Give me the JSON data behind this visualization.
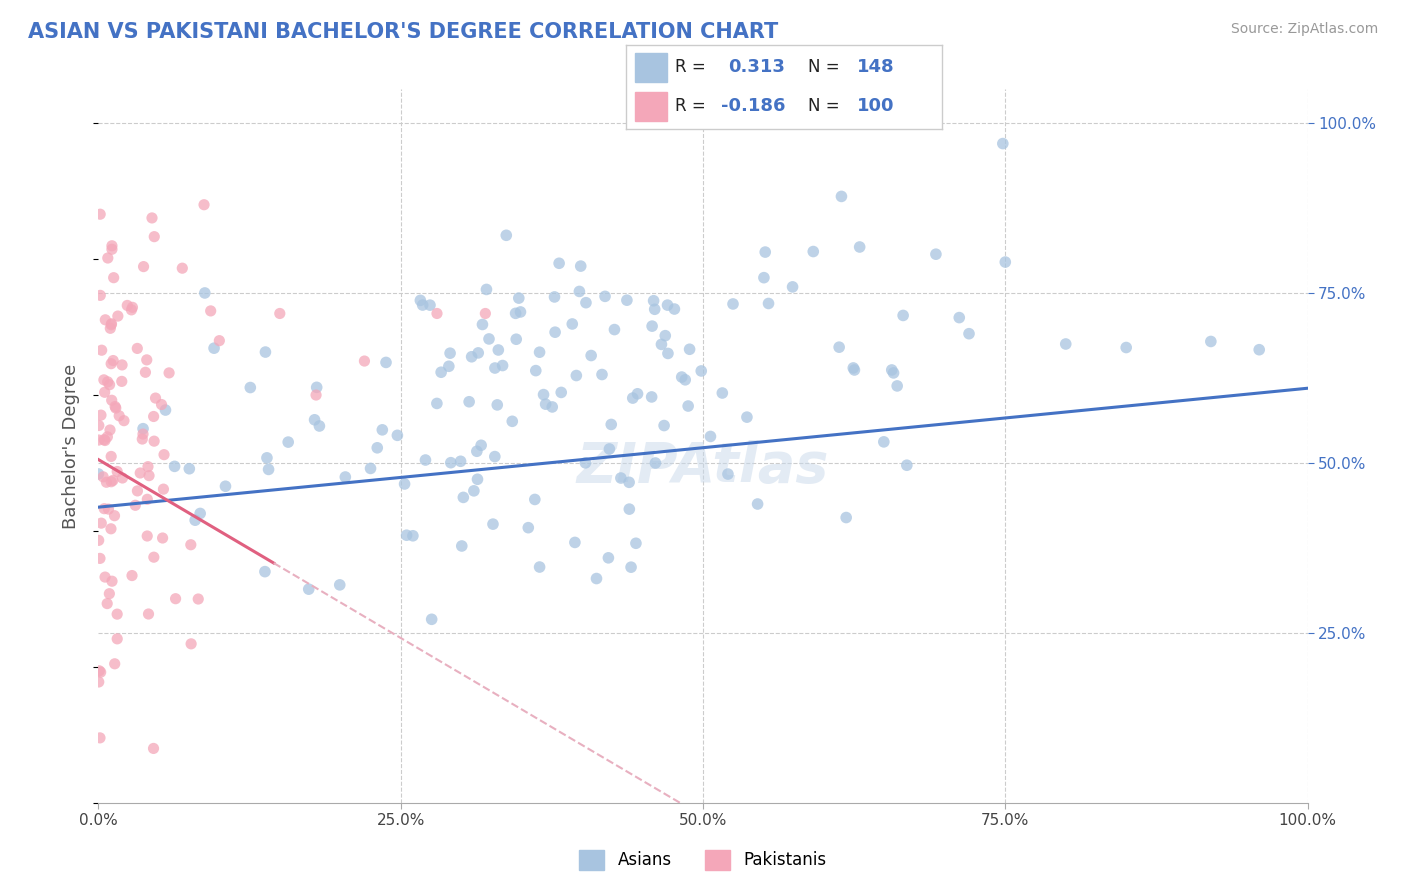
{
  "title": "ASIAN VS PAKISTANI BACHELOR'S DEGREE CORRELATION CHART",
  "source": "Source: ZipAtlas.com",
  "ylabel": "Bachelor's Degree",
  "asian_color": "#a8c4e0",
  "pakistani_color": "#f4a7b9",
  "asian_line_color": "#4472c4",
  "pakistani_line_color": "#e06080",
  "pakistani_dash_color": "#e8b0c0",
  "title_color": "#4472c4",
  "R_asian": 0.313,
  "N_asian": 148,
  "R_pakistani": -0.186,
  "N_pakistani": 100,
  "watermark": "ZIPAtlas",
  "legend_asians": "Asians",
  "legend_pakistanis": "Pakistanis",
  "background_color": "#ffffff",
  "grid_color": "#cccccc",
  "ytick_color": "#4472c4",
  "legend_box_color": "#cccccc"
}
